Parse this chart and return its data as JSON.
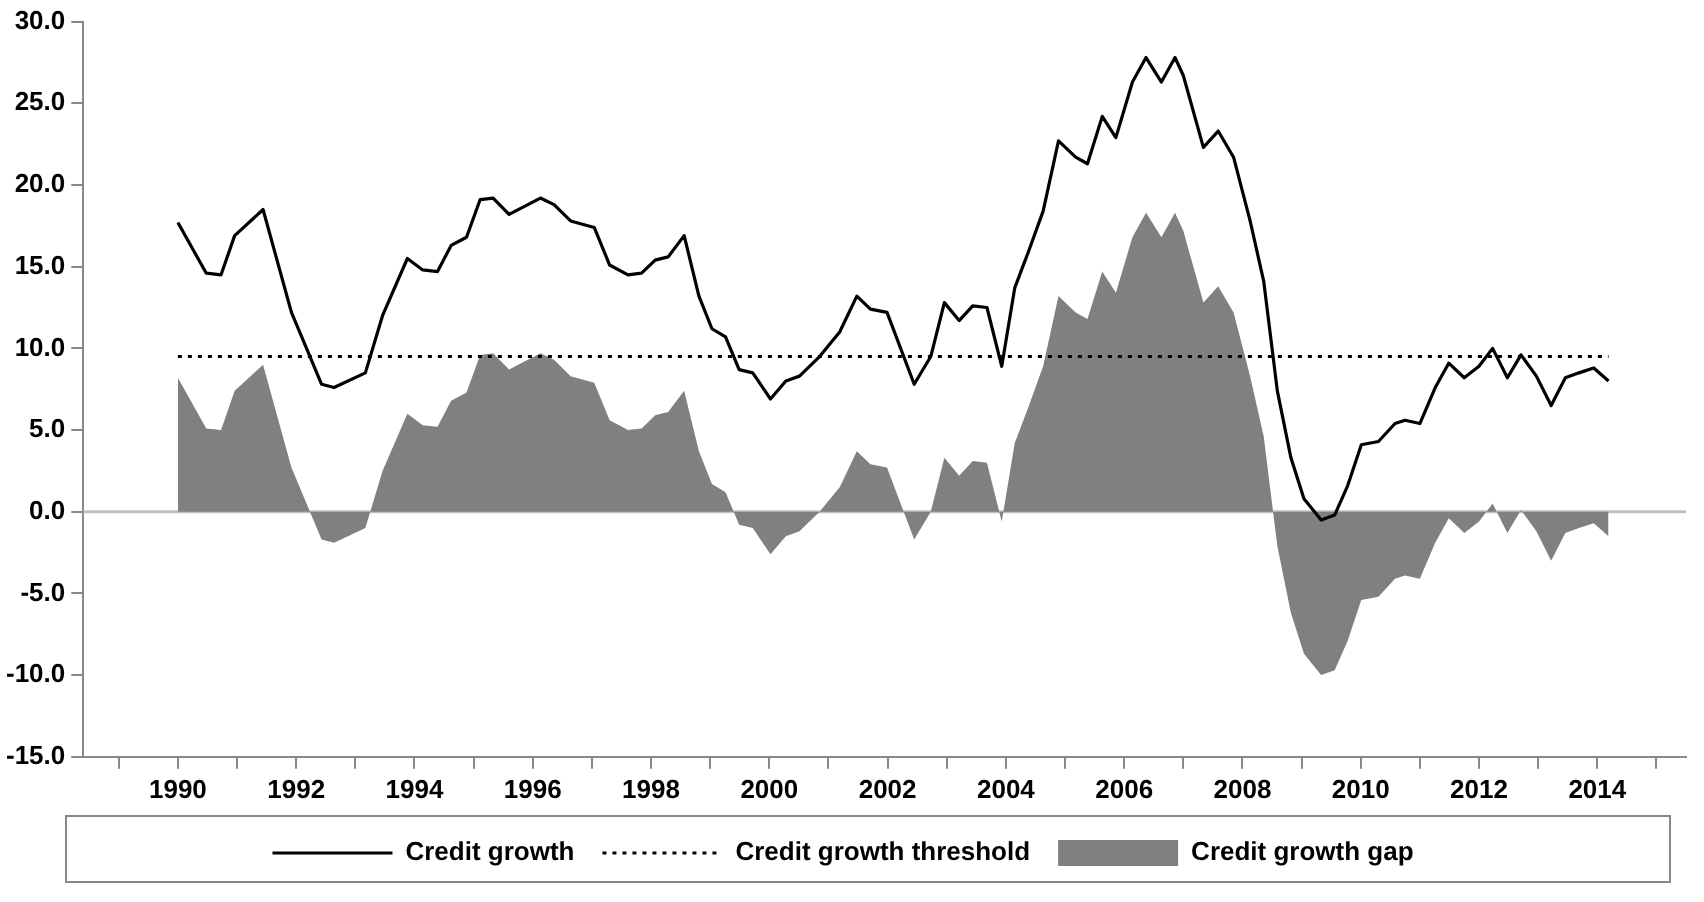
{
  "chart_data": {
    "type": "line",
    "xlim": [
      1988.4,
      2015.5
    ],
    "xticks": [
      {
        "value": 1989,
        "label": null
      },
      {
        "value": 1990,
        "label": "1990"
      },
      {
        "value": 1991,
        "label": null
      },
      {
        "value": 1992,
        "label": "1992"
      },
      {
        "value": 1993,
        "label": null
      },
      {
        "value": 1994,
        "label": "1994"
      },
      {
        "value": 1995,
        "label": null
      },
      {
        "value": 1996,
        "label": "1996"
      },
      {
        "value": 1997,
        "label": null
      },
      {
        "value": 1998,
        "label": "1998"
      },
      {
        "value": 1999,
        "label": null
      },
      {
        "value": 2000,
        "label": "2000"
      },
      {
        "value": 2001,
        "label": null
      },
      {
        "value": 2002,
        "label": "2002"
      },
      {
        "value": 2003,
        "label": null
      },
      {
        "value": 2004,
        "label": "2004"
      },
      {
        "value": 2005,
        "label": null
      },
      {
        "value": 2006,
        "label": "2006"
      },
      {
        "value": 2007,
        "label": null
      },
      {
        "value": 2008,
        "label": "2008"
      },
      {
        "value": 2009,
        "label": null
      },
      {
        "value": 2010,
        "label": "2010"
      },
      {
        "value": 2011,
        "label": null
      },
      {
        "value": 2012,
        "label": "2012"
      },
      {
        "value": 2013,
        "label": null
      },
      {
        "value": 2014,
        "label": "2014"
      },
      {
        "value": 2015,
        "label": null
      }
    ],
    "ylim": [
      -15,
      30
    ],
    "yticks": [
      {
        "value": -15,
        "label": "-15.0"
      },
      {
        "value": -10,
        "label": "-10.0"
      },
      {
        "value": -5,
        "label": "-5.0"
      },
      {
        "value": 0,
        "label": "0.0"
      },
      {
        "value": 5,
        "label": "5.0"
      },
      {
        "value": 10,
        "label": "10.0"
      },
      {
        "value": 15,
        "label": "15.0"
      },
      {
        "value": 20,
        "label": "20.0"
      },
      {
        "value": 25,
        "label": "25.0"
      },
      {
        "value": 30,
        "label": "30.0"
      }
    ],
    "grid": false,
    "legend": "bottom",
    "marker": "none",
    "x": [
      1990.0,
      1990.48,
      1990.73,
      1990.96,
      1991.44,
      1991.92,
      1992.43,
      1992.64,
      1993.17,
      1993.46,
      1993.88,
      1994.14,
      1994.39,
      1994.62,
      1994.88,
      1995.11,
      1995.33,
      1995.6,
      1996.13,
      1996.36,
      1996.64,
      1997.04,
      1997.3,
      1997.61,
      1997.84,
      1998.07,
      1998.29,
      1998.56,
      1998.81,
      1999.03,
      1999.26,
      1999.49,
      1999.72,
      2000.02,
      2000.28,
      2000.51,
      2000.85,
      2001.19,
      2001.48,
      2001.71,
      2001.99,
      2002.45,
      2002.73,
      2002.96,
      2003.21,
      2003.44,
      2003.68,
      2003.93,
      2004.15,
      2004.38,
      2004.63,
      2004.89,
      2005.18,
      2005.38,
      2005.63,
      2005.86,
      2006.14,
      2006.37,
      2006.63,
      2006.86,
      2007.0,
      2007.34,
      2007.59,
      2007.85,
      2008.13,
      2008.36,
      2008.59,
      2008.82,
      2009.04,
      2009.33,
      2009.56,
      2009.78,
      2010.01,
      2010.3,
      2010.58,
      2010.75,
      2011.0,
      2011.26,
      2011.49,
      2011.75,
      2012.0,
      2012.23,
      2012.48,
      2012.71,
      2012.97,
      2013.22,
      2013.46,
      2013.69,
      2013.94,
      2014.19
    ],
    "ref_lines": [
      {
        "axis": "y",
        "value": 0,
        "color": "#c0c0c0"
      }
    ],
    "series": [
      {
        "name": "Credit growth",
        "color": "#000000",
        "line_style": "solid",
        "values": [
          17.7,
          14.6,
          14.5,
          16.9,
          18.5,
          12.2,
          7.8,
          7.6,
          8.5,
          12.0,
          15.5,
          14.8,
          14.7,
          16.3,
          16.8,
          19.1,
          19.2,
          18.2,
          19.2,
          18.8,
          17.8,
          17.4,
          15.1,
          14.5,
          14.6,
          15.4,
          15.6,
          16.9,
          13.2,
          11.2,
          10.7,
          8.7,
          8.5,
          6.9,
          8.0,
          8.3,
          9.5,
          11.0,
          13.2,
          12.4,
          12.2,
          7.8,
          9.5,
          12.8,
          11.7,
          12.6,
          12.5,
          8.9,
          13.7,
          15.9,
          18.4,
          22.7,
          21.7,
          21.3,
          24.2,
          22.9,
          26.3,
          27.8,
          26.3,
          27.8,
          26.7,
          22.3,
          23.3,
          21.7,
          17.8,
          14.1,
          7.4,
          3.3,
          0.8,
          -0.5,
          -0.2,
          1.6,
          4.1,
          4.3,
          5.4,
          5.6,
          5.4,
          7.6,
          9.1,
          8.2,
          8.9,
          10.0,
          8.2,
          9.6,
          8.3,
          6.5,
          8.2,
          8.5,
          8.8,
          8.0
        ]
      },
      {
        "name": "Credit growth threshold",
        "color": "#000000",
        "line_style": "dotted",
        "x": [
          1990.0,
          2014.19
        ],
        "values": [
          9.5,
          9.5
        ]
      },
      {
        "name": "Credit growth gap",
        "type": "area",
        "color": "#808080",
        "values": [
          8.2,
          5.1,
          5.0,
          7.4,
          9.0,
          2.7,
          -1.7,
          -1.9,
          -1.0,
          2.5,
          6.0,
          5.3,
          5.2,
          6.8,
          7.3,
          9.6,
          9.7,
          8.7,
          9.7,
          9.3,
          8.3,
          7.9,
          5.6,
          5.0,
          5.1,
          5.9,
          6.1,
          7.4,
          3.7,
          1.7,
          1.2,
          -0.8,
          -1.0,
          -2.6,
          -1.5,
          -1.2,
          0.0,
          1.5,
          3.7,
          2.9,
          2.7,
          -1.7,
          0.0,
          3.3,
          2.2,
          3.1,
          3.0,
          -0.6,
          4.2,
          6.4,
          8.9,
          13.2,
          12.2,
          11.8,
          14.7,
          13.4,
          16.8,
          18.3,
          16.8,
          18.3,
          17.2,
          12.8,
          13.8,
          12.2,
          8.3,
          4.6,
          -2.1,
          -6.2,
          -8.7,
          -10.0,
          -9.7,
          -7.9,
          -5.4,
          -5.2,
          -4.1,
          -3.9,
          -4.1,
          -1.9,
          -0.4,
          -1.3,
          -0.6,
          0.5,
          -1.3,
          0.1,
          -1.2,
          -3.0,
          -1.3,
          -1.0,
          -0.7,
          -1.5
        ]
      }
    ]
  }
}
